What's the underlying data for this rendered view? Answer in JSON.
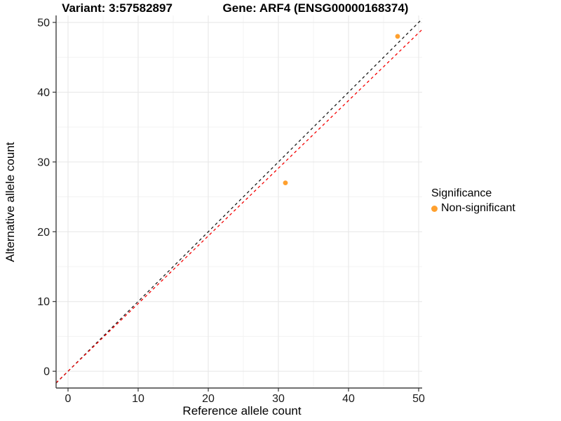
{
  "chart_data": {
    "type": "scatter",
    "title_left": "Variant: 3:57582897",
    "title_right": "Gene: ARF4 (ENSG00000168374)",
    "xlabel": "Reference allele count",
    "ylabel": "Alternative allele count",
    "xlim": [
      -1.7,
      50.5
    ],
    "ylim": [
      -2.4,
      51.0
    ],
    "x_ticks": [
      0,
      10,
      20,
      30,
      40,
      50
    ],
    "y_ticks": [
      0,
      10,
      20,
      30,
      40,
      50
    ],
    "minor_ticks": [
      5,
      15,
      25,
      35,
      45
    ],
    "grid": true,
    "series": [
      {
        "name": "Non-significant",
        "color": "#FFA02E",
        "points": [
          {
            "x": 31,
            "y": 27
          },
          {
            "x": 47,
            "y": 48
          }
        ]
      }
    ],
    "reference_lines": [
      {
        "name": "identity-line",
        "slope": 1.0,
        "intercept": 0,
        "color": "#1a1a1a",
        "dash": "4 4"
      },
      {
        "name": "expected-ratio-line",
        "slope": 0.97,
        "intercept": 0,
        "color": "#f40000",
        "dash": "4 4"
      }
    ],
    "legend": {
      "title": "Significance",
      "position": "right",
      "items": [
        {
          "label": "Non-significant",
          "color": "#FFA02E"
        }
      ]
    },
    "colors": {
      "point": "#FFA02E",
      "identity_line": "#1a1a1a",
      "ratio_line": "#f40000",
      "axis": "#404040",
      "major_grid": "#e6e6e6",
      "minor_grid": "#f3f3f3"
    }
  }
}
